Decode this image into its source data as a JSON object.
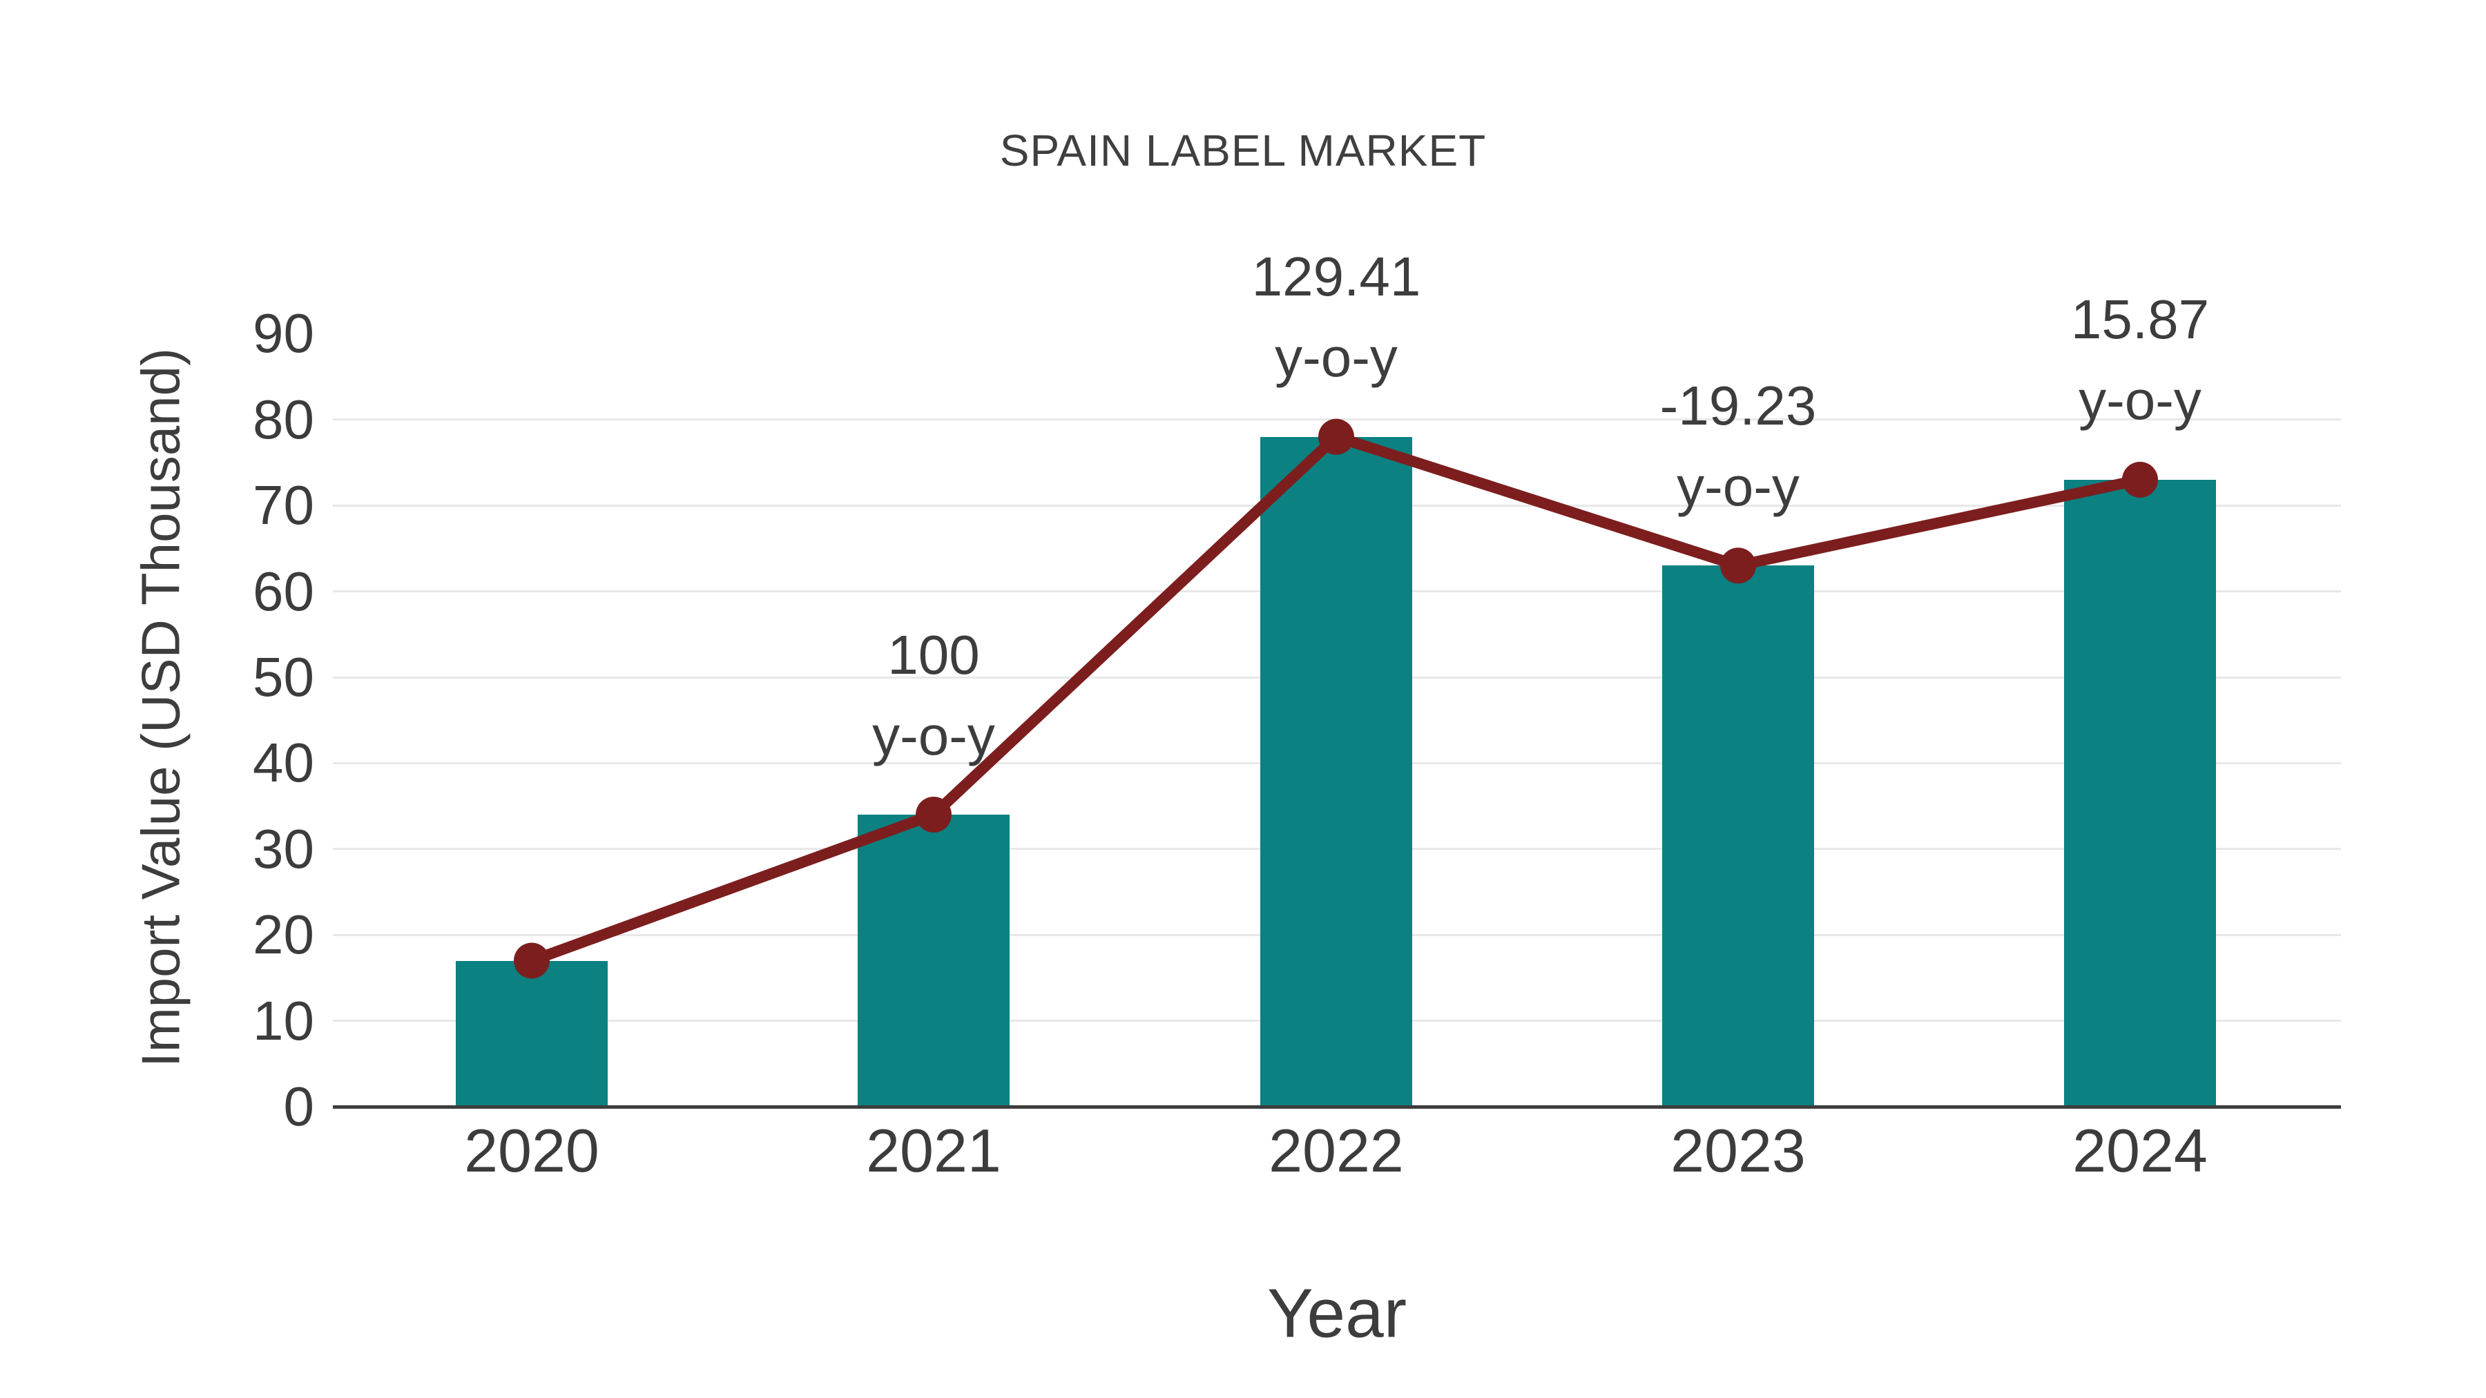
{
  "title": "SPAIN LABEL MARKET",
  "chart_data": {
    "type": "bar",
    "subtype": "bar-with-line-overlay",
    "title": "SPAIN LABEL MARKET",
    "xlabel": "Year",
    "ylabel": "Import Value (USD Thousand)",
    "categories": [
      "2020",
      "2021",
      "2022",
      "2023",
      "2024"
    ],
    "series": [
      {
        "name": "import-value-bars",
        "type": "bar",
        "values": [
          17,
          34,
          78,
          63,
          73
        ]
      },
      {
        "name": "import-value-line",
        "type": "line",
        "values": [
          17,
          34,
          78,
          63,
          73
        ]
      }
    ],
    "annotations": [
      {
        "category": "2020",
        "line1": "",
        "line2": ""
      },
      {
        "category": "2021",
        "line1": "100",
        "line2": "y-o-y"
      },
      {
        "category": "2022",
        "line1": "129.41",
        "line2": "y-o-y"
      },
      {
        "category": "2023",
        "line1": "-19.23",
        "line2": "y-o-y"
      },
      {
        "category": "2024",
        "line1": "15.87",
        "line2": "y-o-y"
      }
    ],
    "yticks": [
      0,
      10,
      20,
      30,
      40,
      50,
      60,
      70,
      80,
      90
    ],
    "ylim": [
      0,
      90
    ],
    "gridlines_at": [
      10,
      20,
      30,
      40,
      50,
      60,
      70,
      80
    ],
    "grid": "horizontal",
    "legend_position": "none",
    "colors": {
      "bar": "#0b8182",
      "line": "#7d1e1e",
      "marker": "#7d1e1e",
      "text": "#3d3d3d",
      "tick_text": "#3c3c3c",
      "grid": "#e8e8e8",
      "axis": "#3d3d3d",
      "background": "#ffffff"
    }
  }
}
